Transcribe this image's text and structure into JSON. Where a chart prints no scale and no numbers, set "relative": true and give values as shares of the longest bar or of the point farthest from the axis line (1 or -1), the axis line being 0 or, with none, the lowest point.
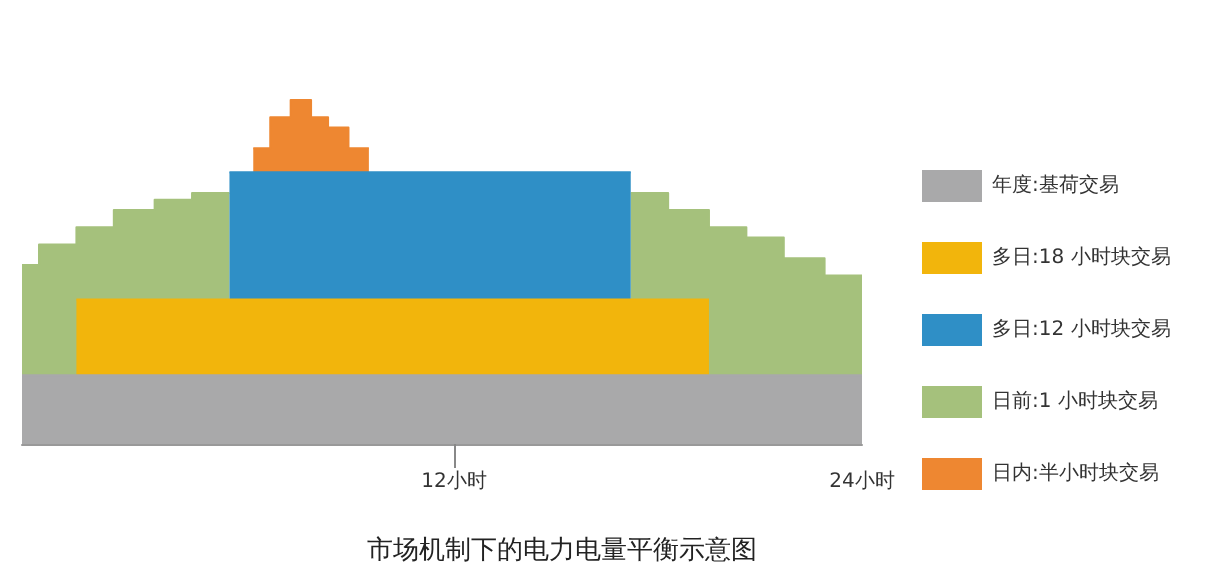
{
  "chart_data": {
    "type": "area",
    "title": "市场机制下的电力电量平衡示意图",
    "relative": true,
    "legend": "right",
    "x": [
      -0.7,
      -0.2,
      -0.2,
      0.9,
      0.9,
      2.0,
      2.0,
      3.2,
      3.2,
      4.3,
      4.3,
      5.4,
      5.4,
      6.1,
      6.1,
      6.6,
      6.6,
      7.2,
      7.2,
      7.8,
      7.8,
      8.3,
      8.3,
      8.9,
      8.9,
      9.5,
      9.5,
      17.2,
      17.2,
      18.3,
      18.3,
      19.5,
      19.5,
      20.6,
      20.6,
      21.7,
      21.7,
      22.9,
      22.9,
      24
    ],
    "xlim": [
      -0.7,
      24
    ],
    "xticks": [
      {
        "value": 12,
        "label": "12小时"
      },
      {
        "value": 24,
        "label": "24小时"
      }
    ],
    "series": [
      {
        "name": "年度:基荷交易",
        "color": "#a9a9aa",
        "values": [
          0.2,
          0.2,
          0.2,
          0.2,
          0.2,
          0.2,
          0.2,
          0.2,
          0.2,
          0.2,
          0.2,
          0.2,
          0.2,
          0.2,
          0.2,
          0.2,
          0.2,
          0.2,
          0.2,
          0.2,
          0.2,
          0.2,
          0.2,
          0.2,
          0.2,
          0.2,
          0.2,
          0.2,
          0.2,
          0.2,
          0.2,
          0.2,
          0.2,
          0.2,
          0.2,
          0.2,
          0.2,
          0.2,
          0.2,
          0.2
        ]
      },
      {
        "name": "多日:18 小时块交易",
        "color": "#f2b50c",
        "values": [
          null,
          null,
          null,
          null,
          0.42,
          0.42,
          0.42,
          0.42,
          0.42,
          0.42,
          0.42,
          0.42,
          0.42,
          0.42,
          0.42,
          0.42,
          0.42,
          0.42,
          0.42,
          0.42,
          0.42,
          0.42,
          0.42,
          0.42,
          0.42,
          0.42,
          0.42,
          0.42,
          0.42,
          0.42,
          0.42,
          0.42,
          null,
          null,
          null,
          null,
          null,
          null,
          null,
          null
        ]
      },
      {
        "name": "多日:12 小时块交易",
        "color": "#2f8fc6",
        "values": [
          null,
          null,
          null,
          null,
          null,
          null,
          null,
          null,
          null,
          null,
          null,
          null,
          0.79,
          0.79,
          0.79,
          0.79,
          0.79,
          0.79,
          0.79,
          0.79,
          0.79,
          0.79,
          0.79,
          0.79,
          0.79,
          0.79,
          0.79,
          0.79,
          null,
          null,
          null,
          null,
          null,
          null,
          null,
          null,
          null,
          null,
          null,
          null
        ]
      },
      {
        "name": "日前:1 小时块交易",
        "color": "#a5c17c",
        "values": [
          0.52,
          0.52,
          0.58,
          0.58,
          0.63,
          0.63,
          0.68,
          0.68,
          0.71,
          0.71,
          0.73,
          0.73,
          null,
          null,
          null,
          null,
          null,
          null,
          null,
          null,
          null,
          null,
          null,
          null,
          null,
          null,
          null,
          null,
          0.73,
          0.73,
          0.68,
          0.68,
          0.63,
          0.63,
          0.6,
          0.6,
          0.54,
          0.54,
          0.49,
          0.49
        ]
      },
      {
        "name": "日内:半小时块交易",
        "color": "#ee8731",
        "values": [
          null,
          null,
          null,
          null,
          null,
          null,
          null,
          null,
          null,
          null,
          null,
          null,
          null,
          null,
          0.86,
          0.86,
          0.95,
          0.95,
          1.0,
          1.0,
          0.95,
          0.95,
          0.92,
          0.92,
          0.86,
          0.86,
          null,
          null,
          null,
          null,
          null,
          null,
          null,
          null,
          null,
          null,
          null,
          null,
          null,
          null
        ]
      }
    ]
  }
}
